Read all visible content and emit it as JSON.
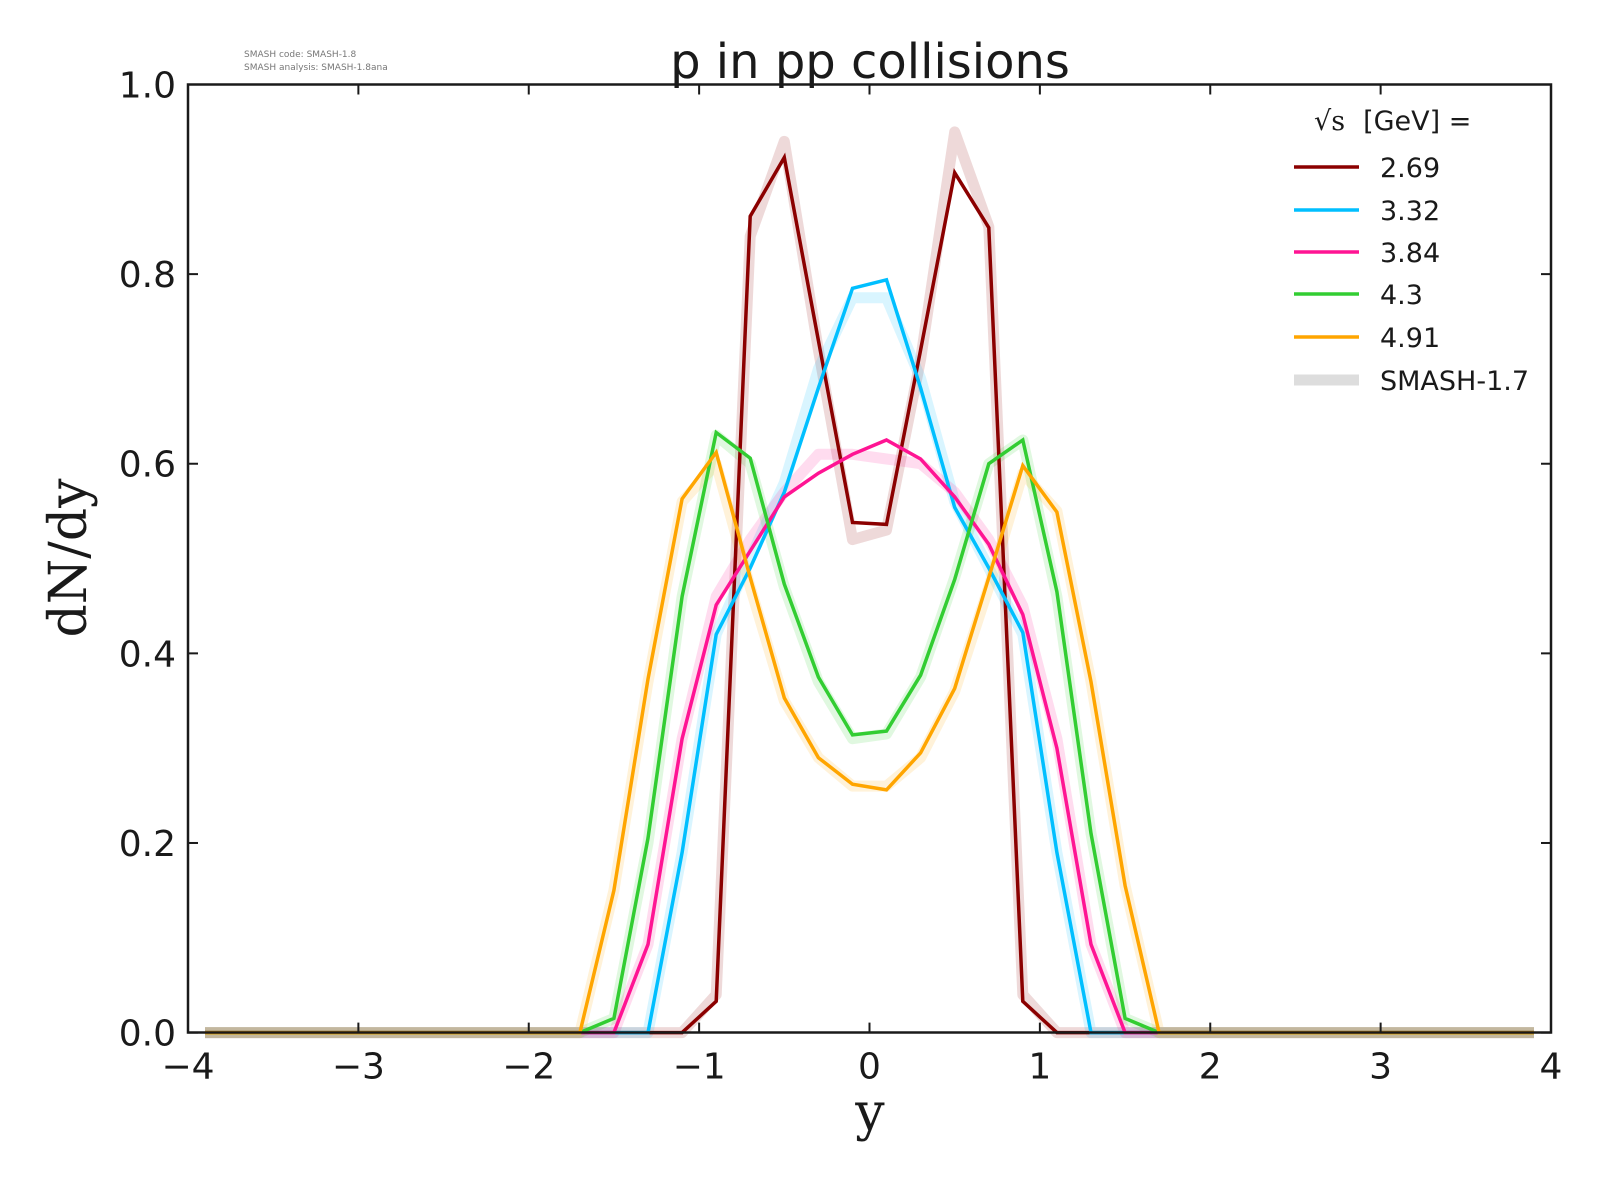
{
  "chart_data": {
    "type": "line",
    "title": "p in pp collisions",
    "xlabel": "y",
    "ylabel": "dN/dy",
    "xlim": [
      -4,
      4
    ],
    "ylim": [
      0,
      1.0
    ],
    "grid": false,
    "x_ticks": [
      "−4",
      "−3",
      "−2",
      "−1",
      "0",
      "1",
      "2",
      "3",
      "4"
    ],
    "x_tick_values": [
      -4,
      -3,
      -2,
      -1,
      0,
      1,
      2,
      3,
      4
    ],
    "y_ticks": [
      "0.0",
      "0.2",
      "0.4",
      "0.6",
      "0.8",
      "1.0"
    ],
    "y_tick_values": [
      0,
      0.2,
      0.4,
      0.6,
      0.8,
      1.0
    ],
    "watermark": [
      "SMASH code:      SMASH-1.8",
      "SMASH analysis: SMASH-1.8ana"
    ],
    "legend": {
      "placement": "top-right",
      "title_root": "√s",
      "title_rest": "[GeV] =",
      "reference_label": "SMASH-1.7",
      "reference_color": "#dddddd"
    },
    "x": [
      -3.9,
      -3.7,
      -3.5,
      -3.3,
      -3.1,
      -2.9,
      -2.7,
      -2.5,
      -2.3,
      -2.1,
      -1.9,
      -1.7,
      -1.5,
      -1.3,
      -1.1,
      -0.9,
      -0.7,
      -0.5,
      -0.3,
      -0.1,
      0.1,
      0.3,
      0.5,
      0.7,
      0.9,
      1.1,
      1.3,
      1.5,
      1.7,
      1.9,
      2.1,
      2.3,
      2.5,
      2.7,
      2.9,
      3.1,
      3.3,
      3.5,
      3.7,
      3.9
    ],
    "series": [
      {
        "name": "2.69",
        "color": "#8b0000",
        "values": [
          0,
          0,
          0,
          0,
          0,
          0,
          0,
          0,
          0,
          0,
          0,
          0,
          0,
          0,
          0,
          0.033,
          0.861,
          0.923,
          0.73,
          0.538,
          0.536,
          0.72,
          0.907,
          0.849,
          0.033,
          0,
          0,
          0,
          0,
          0,
          0,
          0,
          0,
          0,
          0,
          0,
          0,
          0,
          0,
          0
        ],
        "reference_values": [
          0,
          0,
          0,
          0,
          0,
          0,
          0,
          0,
          0,
          0,
          0,
          0,
          0,
          0,
          0,
          0.04,
          0.84,
          0.94,
          0.72,
          0.52,
          0.53,
          0.71,
          0.95,
          0.85,
          0.04,
          0,
          0,
          0,
          0,
          0,
          0,
          0,
          0,
          0,
          0,
          0,
          0,
          0,
          0,
          0
        ]
      },
      {
        "name": "3.32",
        "color": "#00bfff",
        "values": [
          0,
          0,
          0,
          0,
          0,
          0,
          0,
          0,
          0,
          0,
          0,
          0,
          0,
          0,
          0.19,
          0.42,
          0.49,
          0.57,
          0.68,
          0.785,
          0.794,
          0.68,
          0.554,
          0.49,
          0.422,
          0.19,
          0,
          0,
          0,
          0,
          0,
          0,
          0,
          0,
          0,
          0,
          0,
          0,
          0,
          0
        ],
        "reference_values": [
          0,
          0,
          0,
          0,
          0,
          0,
          0,
          0,
          0,
          0,
          0,
          0,
          0,
          0,
          0.19,
          0.42,
          0.5,
          0.58,
          0.7,
          0.775,
          0.775,
          0.69,
          0.56,
          0.49,
          0.42,
          0.19,
          0,
          0,
          0,
          0,
          0,
          0,
          0,
          0,
          0,
          0,
          0,
          0,
          0,
          0
        ]
      },
      {
        "name": "3.84",
        "color": "#ff1493",
        "values": [
          0,
          0,
          0,
          0,
          0,
          0,
          0,
          0,
          0,
          0,
          0,
          0,
          0,
          0.093,
          0.31,
          0.451,
          0.508,
          0.565,
          0.59,
          0.61,
          0.625,
          0.605,
          0.565,
          0.515,
          0.441,
          0.3,
          0.093,
          0,
          0,
          0,
          0,
          0,
          0,
          0,
          0,
          0,
          0,
          0,
          0,
          0
        ],
        "reference_values": [
          0,
          0,
          0,
          0,
          0,
          0,
          0,
          0,
          0,
          0,
          0,
          0,
          0,
          0.093,
          0.31,
          0.46,
          0.52,
          0.57,
          0.61,
          0.61,
          0.605,
          0.6,
          0.57,
          0.52,
          0.45,
          0.31,
          0.093,
          0,
          0,
          0,
          0,
          0,
          0,
          0,
          0,
          0,
          0,
          0,
          0,
          0
        ]
      },
      {
        "name": "4.3",
        "color": "#32cd32",
        "values": [
          0,
          0,
          0,
          0,
          0,
          0,
          0,
          0,
          0,
          0,
          0,
          0,
          0.015,
          0.205,
          0.46,
          0.633,
          0.606,
          0.473,
          0.375,
          0.314,
          0.318,
          0.377,
          0.478,
          0.6,
          0.625,
          0.465,
          0.21,
          0.015,
          0,
          0,
          0,
          0,
          0,
          0,
          0,
          0,
          0,
          0,
          0,
          0
        ],
        "reference_values": [
          0,
          0,
          0,
          0,
          0,
          0,
          0,
          0,
          0,
          0,
          0,
          0,
          0.015,
          0.2,
          0.46,
          0.63,
          0.6,
          0.47,
          0.37,
          0.31,
          0.315,
          0.375,
          0.48,
          0.6,
          0.625,
          0.46,
          0.21,
          0.015,
          0,
          0,
          0,
          0,
          0,
          0,
          0,
          0,
          0,
          0,
          0,
          0
        ]
      },
      {
        "name": "4.91",
        "color": "#ffa500",
        "values": [
          0,
          0,
          0,
          0,
          0,
          0,
          0,
          0,
          0,
          0,
          0,
          0,
          0.15,
          0.373,
          0.563,
          0.612,
          0.48,
          0.353,
          0.29,
          0.262,
          0.256,
          0.295,
          0.363,
          0.48,
          0.598,
          0.549,
          0.37,
          0.155,
          0,
          0,
          0,
          0,
          0,
          0,
          0,
          0,
          0,
          0,
          0,
          0
        ],
        "reference_values": [
          0,
          0,
          0,
          0,
          0,
          0,
          0,
          0,
          0,
          0,
          0,
          0,
          0.15,
          0.37,
          0.56,
          0.6,
          0.47,
          0.35,
          0.29,
          0.26,
          0.26,
          0.29,
          0.36,
          0.47,
          0.59,
          0.55,
          0.37,
          0.155,
          0,
          0,
          0,
          0,
          0,
          0,
          0,
          0,
          0,
          0,
          0,
          0
        ]
      }
    ]
  }
}
